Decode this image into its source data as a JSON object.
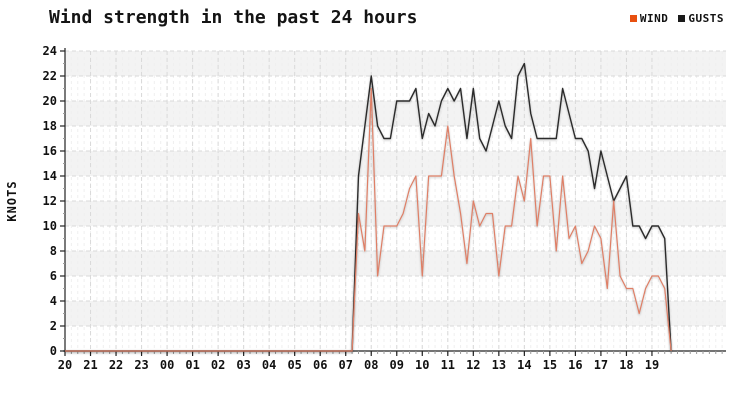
{
  "title": "Wind strength in the past 24 hours",
  "legend": [
    {
      "label": "WIND",
      "color": "#e8500f"
    },
    {
      "label": "GUSTS",
      "color": "#1a1a1a"
    }
  ],
  "chart_data": {
    "type": "line",
    "title": "Wind strength in the past 24 hours",
    "xlabel": "",
    "ylabel": "knots",
    "ylim": [
      0,
      24
    ],
    "ytick_step": 2,
    "ytick_labels": [
      "0",
      "2",
      "4",
      "6",
      "8",
      "10",
      "12",
      "14",
      "16",
      "18",
      "20",
      "22",
      "24"
    ],
    "x_hour_labels": [
      "20",
      "21",
      "22",
      "23",
      "00",
      "01",
      "02",
      "03",
      "04",
      "05",
      "06",
      "07",
      "08",
      "09",
      "10",
      "11",
      "12",
      "13",
      "14",
      "15",
      "16",
      "17",
      "18",
      "19"
    ],
    "interval_minutes": 15,
    "start_time": "20:00",
    "end_time": "19:45",
    "grid": "dashed, alternating horizontal shaded bands",
    "legend_position": "top-right",
    "series": [
      {
        "name": "WIND",
        "color": "#df7f66",
        "values": [
          0,
          0,
          0,
          0,
          0,
          0,
          0,
          0,
          0,
          0,
          0,
          0,
          0,
          0,
          0,
          0,
          0,
          0,
          0,
          0,
          0,
          0,
          0,
          0,
          0,
          0,
          0,
          0,
          0,
          0,
          0,
          0,
          0,
          0,
          0,
          0,
          0,
          0,
          0,
          0,
          0,
          0,
          0,
          0,
          0,
          0,
          11,
          8,
          21,
          6,
          10,
          10,
          10,
          11,
          13,
          14,
          6,
          14,
          14,
          14,
          18,
          14,
          11,
          7,
          12,
          10,
          11,
          11,
          6,
          10,
          10,
          14,
          12,
          17,
          10,
          14,
          14,
          8,
          14,
          9,
          10,
          7,
          8,
          10,
          9,
          5,
          12,
          6,
          5,
          5,
          3,
          5,
          6,
          6,
          5,
          0
        ]
      },
      {
        "name": "GUSTS",
        "color": "#2b2b2b",
        "values": [
          0,
          0,
          0,
          0,
          0,
          0,
          0,
          0,
          0,
          0,
          0,
          0,
          0,
          0,
          0,
          0,
          0,
          0,
          0,
          0,
          0,
          0,
          0,
          0,
          0,
          0,
          0,
          0,
          0,
          0,
          0,
          0,
          0,
          0,
          0,
          0,
          0,
          0,
          0,
          0,
          0,
          0,
          0,
          0,
          0,
          0,
          14,
          18,
          22,
          18,
          17,
          17,
          20,
          20,
          20,
          21,
          17,
          19,
          18,
          20,
          21,
          20,
          21,
          17,
          21,
          17,
          16,
          18,
          20,
          18,
          17,
          22,
          23,
          19,
          17,
          17,
          17,
          17,
          21,
          19,
          17,
          17,
          16,
          13,
          16,
          14,
          12,
          13,
          14,
          10,
          10,
          9,
          10,
          10,
          9,
          0
        ]
      }
    ]
  },
  "colors": {
    "band_gray": "#f3f3f3",
    "grid_major": "#d9d9d9",
    "grid_minor": "#efefef",
    "axis": "#222222",
    "tick_minor": "#999999",
    "label": "#111111"
  }
}
